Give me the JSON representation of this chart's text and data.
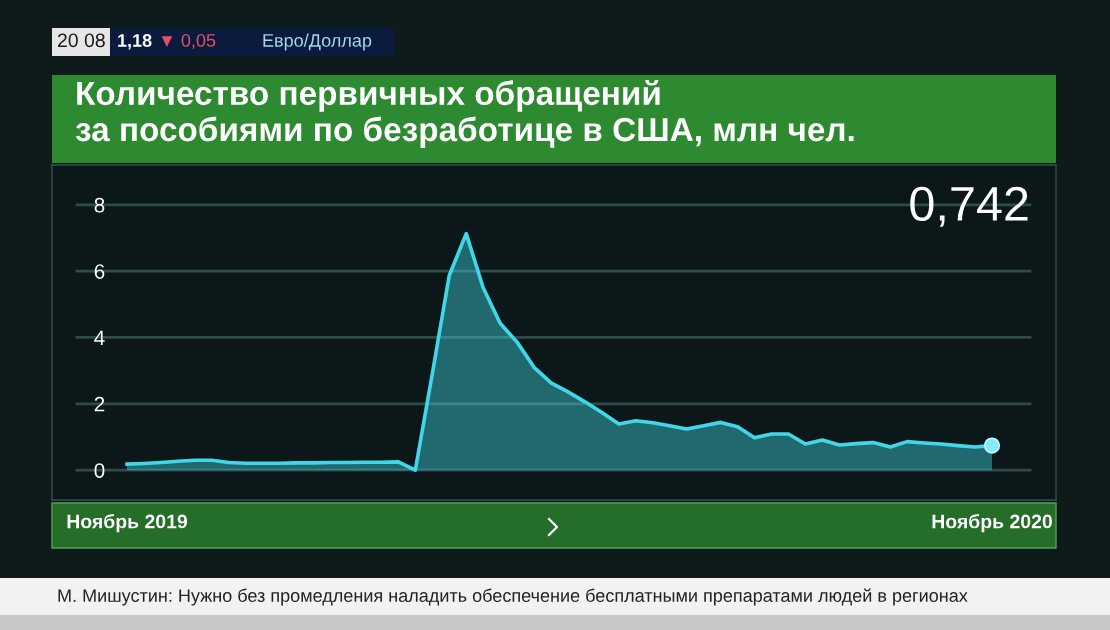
{
  "chart_data": {
    "type": "area",
    "title": "Количество первичных обращений\nза пособиями по безработице в США, млн чел.",
    "categories": [
      "Ноябрь 2019",
      null,
      null,
      null,
      null,
      null,
      null,
      null,
      null,
      null,
      null,
      null,
      null,
      null,
      null,
      null,
      null,
      null,
      null,
      null,
      null,
      null,
      null,
      null,
      null,
      null,
      null,
      null,
      null,
      null,
      null,
      null,
      null,
      null,
      null,
      null,
      null,
      null,
      null,
      null,
      null,
      null,
      null,
      null,
      null,
      null,
      null,
      null,
      null,
      null,
      null,
      "Ноябрь 2020"
    ],
    "series": [
      {
        "color": "#40d8e8",
        "values": [
          0.18,
          0.2,
          0.23,
          0.27,
          0.3,
          0.3,
          0.23,
          0.21,
          0.21,
          0.21,
          0.22,
          0.22,
          0.23,
          0.23,
          0.24,
          0.24,
          0.25,
          0.0,
          2.9,
          5.87,
          7.13,
          5.5,
          4.43,
          3.86,
          3.1,
          2.63,
          2.36,
          2.06,
          1.74,
          1.39,
          1.49,
          1.43,
          1.34,
          1.24,
          1.34,
          1.44,
          1.31,
          0.98,
          1.09,
          1.09,
          0.79,
          0.91,
          0.76,
          0.8,
          0.83,
          0.7,
          0.86,
          0.82,
          0.79,
          0.74,
          0.7,
          0.742
        ]
      },
      {
        "type": "scatter",
        "color": "#7fecf8",
        "marker": "circle",
        "values": [
          null,
          null,
          null,
          null,
          null,
          null,
          null,
          null,
          null,
          null,
          null,
          null,
          null,
          null,
          null,
          null,
          null,
          null,
          null,
          null,
          null,
          null,
          null,
          null,
          null,
          null,
          null,
          null,
          null,
          null,
          null,
          null,
          null,
          null,
          null,
          null,
          null,
          null,
          null,
          null,
          null,
          null,
          null,
          null,
          null,
          null,
          null,
          null,
          null,
          null,
          null,
          0.742
        ]
      }
    ],
    "ylim": [
      -0.9,
      9.2
    ],
    "yticks": [
      0,
      2,
      4,
      6,
      8
    ],
    "grid": "y",
    "annotations": [
      "0,742",
      "20 08",
      "1,18",
      "▼ 0,05",
      "Евро/Доллар",
      "М. Мишустин: Нужно без промедления наладить обеспечение бесплатными препаратами людей в регионах"
    ]
  }
}
